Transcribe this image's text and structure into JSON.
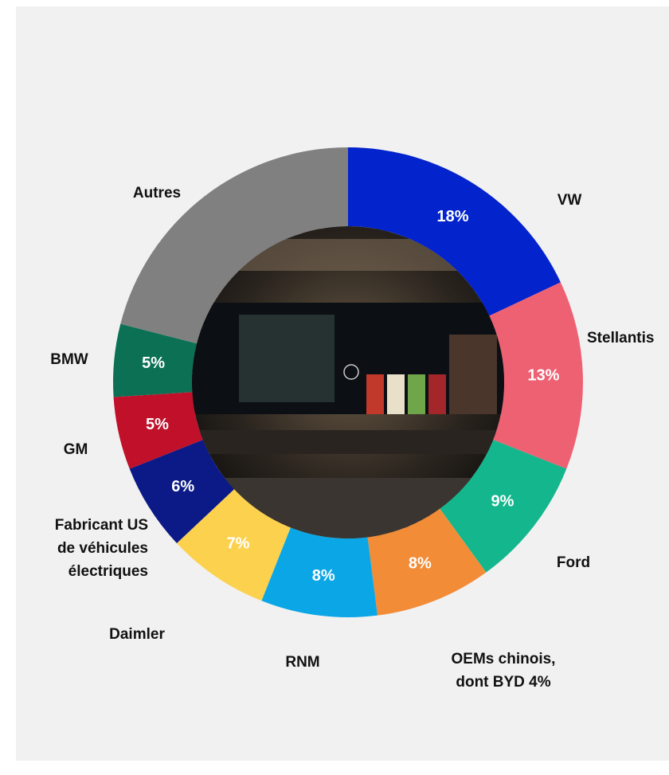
{
  "chart_data": {
    "type": "donut",
    "categories": [
      "VW",
      "Stellantis",
      "Ford",
      "OEMs chinois,\ndont BYD 4%",
      "RNM",
      "Daimler",
      "Fabricant US\nde véhicules\nélectriques",
      "GM",
      "BMW",
      "Autres"
    ],
    "values": [
      18,
      13,
      9,
      8,
      8,
      7,
      6,
      5,
      5,
      21
    ],
    "value_labels": [
      "18%",
      "13%",
      "9%",
      "8%",
      "8%",
      "7%",
      "6%",
      "5%",
      "5%",
      null
    ],
    "colors": [
      "#0323cc",
      "#ee6173",
      "#14b78d",
      "#f28c37",
      "#0ba6e6",
      "#fcd14e",
      "#0b1a86",
      "#c0102a",
      "#0c7154",
      "#808080"
    ]
  }
}
